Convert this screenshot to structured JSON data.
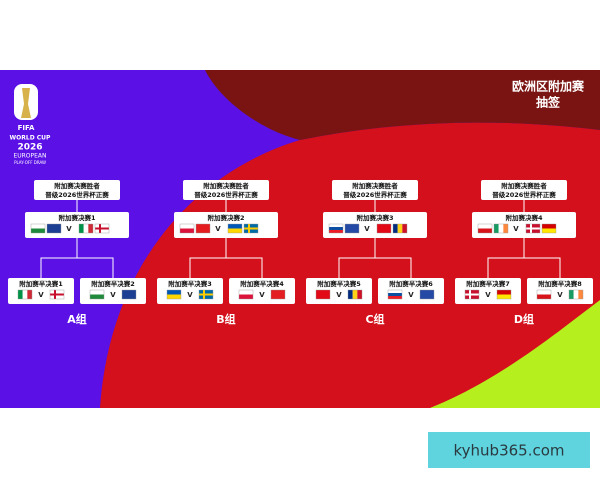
{
  "logo": {
    "fifa": "FIFA",
    "line1": "WORLD CUP",
    "line2": "2026",
    "line3": "EUROPEAN",
    "line4": "PLAY-OFF DRAW"
  },
  "header": {
    "title": "欧洲区附加赛",
    "subtitle": "抽签"
  },
  "versus": "V",
  "groups": [
    {
      "label": "A组",
      "winner": [
        "附加赛决赛胜者",
        "晋级2026世界杯正赛"
      ],
      "final": "附加赛决赛1",
      "semis": [
        "附加赛半决赛1",
        "附加赛半决赛2"
      ]
    },
    {
      "label": "B组",
      "winner": [
        "附加赛决赛胜者",
        "晋级2026世界杯正赛"
      ],
      "final": "附加赛决赛2",
      "semis": [
        "附加赛半决赛3",
        "附加赛半决赛4"
      ]
    },
    {
      "label": "C组",
      "winner": [
        "附加赛决赛胜者",
        "晋级2026世界杯正赛"
      ],
      "final": "附加赛决赛3",
      "semis": [
        "附加赛半决赛5",
        "附加赛半决赛6"
      ]
    },
    {
      "label": "D组",
      "winner": [
        "附加赛决赛胜者",
        "晋级2026世界杯正赛"
      ],
      "final": "附加赛决赛4",
      "semis": [
        "附加赛半决赛7",
        "附加赛半决赛8"
      ]
    }
  ],
  "watermark": "kyhub365.com"
}
